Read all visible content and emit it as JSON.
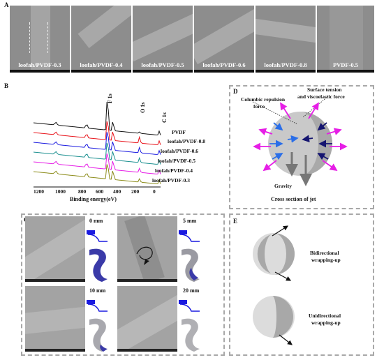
{
  "panelA": {
    "letter": "A",
    "images": [
      "loofah/PVDF-0.3",
      "loofah/PVDF-0.4",
      "loofah/PVDF-0.5",
      "loofah/PVDF-0.6",
      "loofah/PVDF-0.8",
      "PVDF-0.5"
    ]
  },
  "panelB": {
    "letter": "B",
    "peaks": {
      "f1s": "F 1s",
      "o1s": "O 1s",
      "c1s": "C 1s"
    },
    "series": [
      "PVDF",
      "loofah/PVDF-0.8",
      "loofah/PVDF-0.6",
      "loofah/PVDF-0.5",
      "loofah/PVDF-0.4",
      "loofah/PVDF-0.3"
    ],
    "colors": [
      "#111111",
      "#e8141b",
      "#1a1ae0",
      "#1a8f8f",
      "#e61ee6",
      "#8c8c1a"
    ],
    "xticks": [
      "1200",
      "1000",
      "800",
      "600",
      "400",
      "200",
      "0"
    ],
    "xlabel": "Binding energy(eV)"
  },
  "panelD": {
    "letter": "D",
    "columbic_line1": "Columbic repulsion",
    "columbic_line2": "force",
    "surface_line1": "Surface tension",
    "surface_line2": "and viscoelastic force",
    "gravity": "Gravity",
    "caption": "Cross section of jet"
  },
  "panelC": {
    "letter": "C",
    "distances": [
      "0 mm",
      "5 mm",
      "10 mm",
      "20 mm"
    ]
  },
  "panelE": {
    "letter": "E",
    "bi_line1": "Bidirectional",
    "bi_line2": "wrapping-up",
    "uni_line1": "Unidirectional",
    "uni_line2": "wrapping-up"
  }
}
